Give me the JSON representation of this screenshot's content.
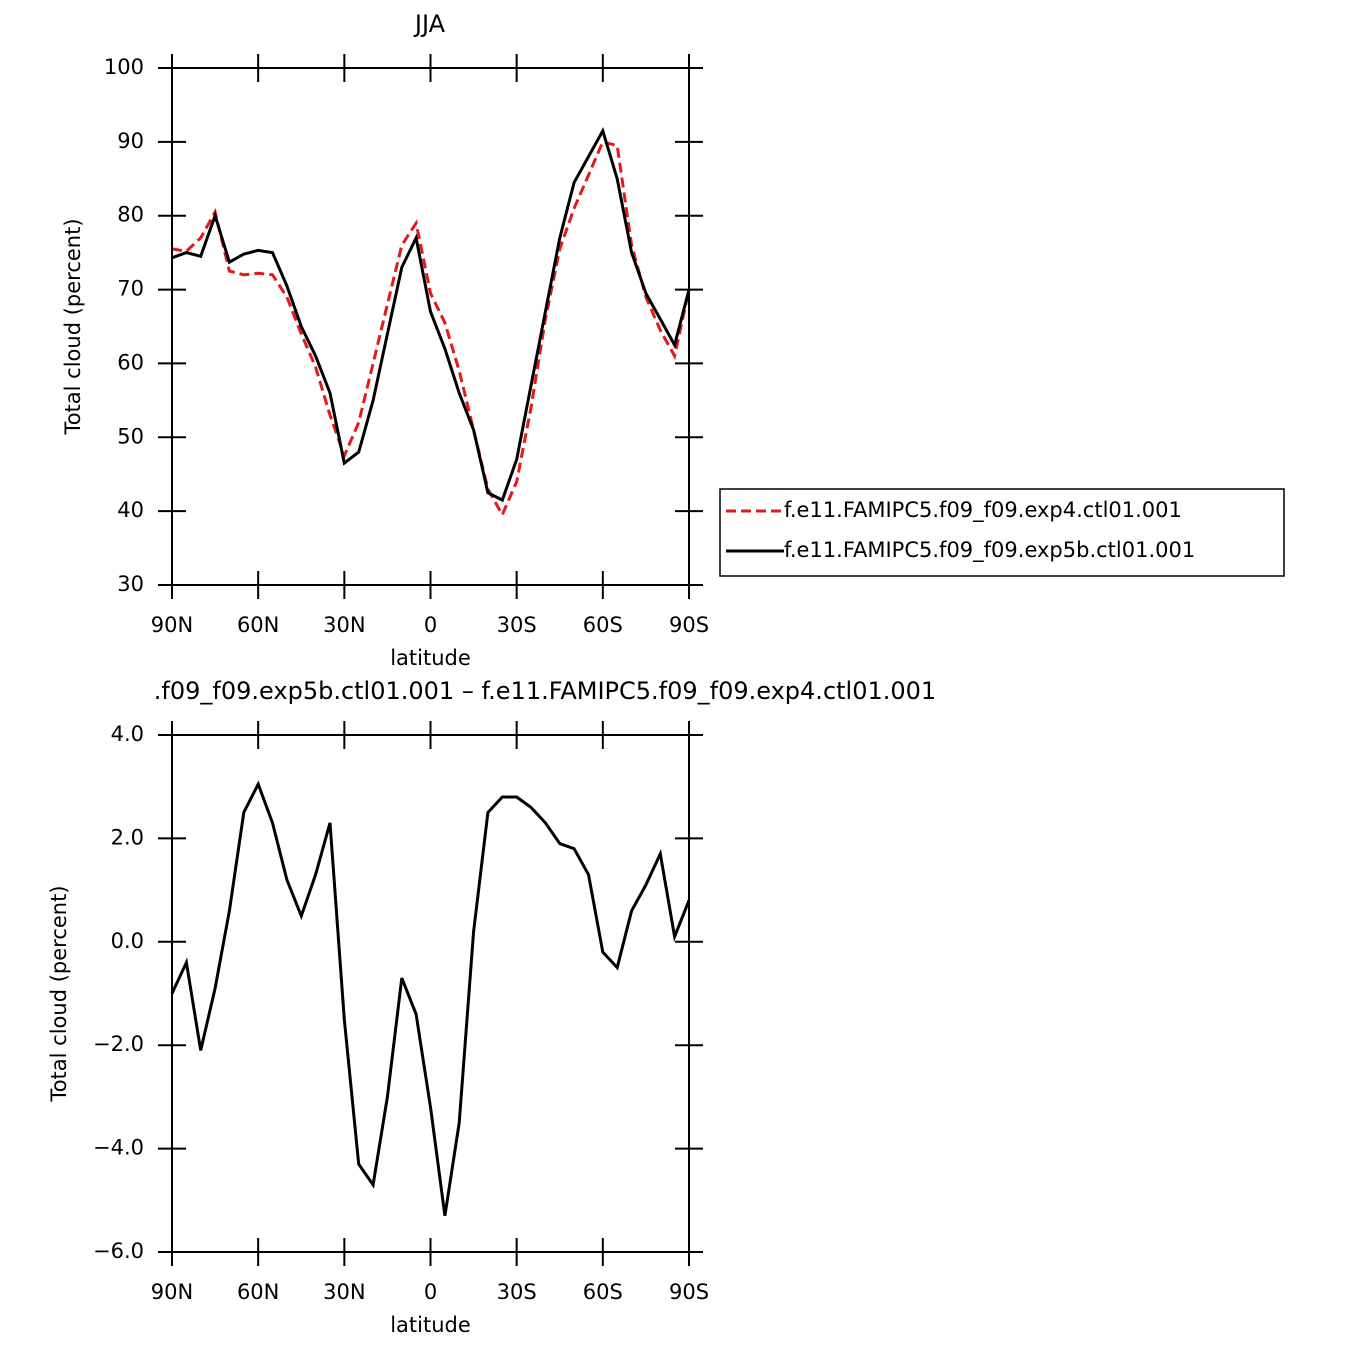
{
  "chart_data": [
    {
      "type": "line",
      "title": "JJA",
      "xlabel": "latitude",
      "ylabel": "Total cloud (percent)",
      "x": [
        90,
        85,
        80,
        75,
        70,
        65,
        60,
        55,
        50,
        45,
        40,
        35,
        30,
        25,
        20,
        15,
        10,
        5,
        0,
        -5,
        -10,
        -15,
        -20,
        -25,
        -30,
        -35,
        -40,
        -45,
        -50,
        -55,
        -60,
        -65,
        -70,
        -75,
        -80,
        -85,
        -90
      ],
      "series": [
        {
          "name": "f.e11.FAMIPC5.f09_f09.exp4.ctl01.001",
          "color": "#e31a1c",
          "line_style": "dashed",
          "values": [
            75.5,
            75.2,
            77,
            80.5,
            72.5,
            72,
            72.2,
            72,
            69,
            64,
            59.5,
            53,
            47.5,
            52,
            60,
            68,
            76,
            79,
            69.5,
            65.5,
            59,
            51,
            43,
            39.5,
            44,
            54,
            66,
            75.5,
            81,
            85.5,
            90,
            89.5,
            76,
            69,
            64.5,
            61,
            70
          ]
        },
        {
          "name": "f.e11.FAMIPC5.f09_f09.exp5b.ctl01.001",
          "color": "#000000",
          "line_style": "solid",
          "values": [
            74.3,
            75,
            74.5,
            80,
            73.7,
            74.8,
            75.3,
            75,
            70.5,
            65,
            61,
            56,
            46.5,
            48,
            55,
            64,
            73,
            77,
            67,
            62,
            56,
            51,
            42.5,
            41.5,
            47,
            57,
            67,
            77,
            84.5,
            88,
            91.5,
            85,
            75,
            69.5,
            66,
            62.5,
            70
          ]
        }
      ],
      "xlim": [
        90,
        -90
      ],
      "xticks": [
        {
          "value": 90,
          "label": "90N"
        },
        {
          "value": 60,
          "label": "60N"
        },
        {
          "value": 30,
          "label": "30N"
        },
        0,
        {
          "value": -30,
          "label": "30S"
        },
        {
          "value": -60,
          "label": "60S"
        },
        {
          "value": -90,
          "label": "90S"
        }
      ],
      "ylim": [
        30,
        100
      ],
      "yticks": [
        30,
        40,
        50,
        60,
        70,
        80,
        90,
        100
      ],
      "legend": "right"
    },
    {
      "type": "line",
      "title": ".f09_f09.exp5b.ctl01.001  –  f.e11.FAMIPC5.f09_f09.exp4.ctl01.001",
      "xlabel": "latitude",
      "ylabel": "Total cloud (percent)",
      "x": [
        90,
        85,
        80,
        75,
        70,
        65,
        60,
        55,
        50,
        45,
        40,
        35,
        30,
        25,
        20,
        15,
        10,
        5,
        0,
        -5,
        -10,
        -15,
        -20,
        -25,
        -30,
        -35,
        -40,
        -45,
        -50,
        -55,
        -60,
        -65,
        -70,
        -75,
        -80,
        -85,
        -90
      ],
      "series": [
        {
          "color": "#000000",
          "line_style": "solid",
          "values": [
            -1,
            -0.4,
            -2.1,
            -0.9,
            0.6,
            2.5,
            3.05,
            2.3,
            1.2,
            0.5,
            1.3,
            2.3,
            -1.5,
            -4.3,
            -4.7,
            -3,
            -0.7,
            -1.4,
            -3.2,
            -5.3,
            -3.5,
            0.2,
            2.5,
            2.8,
            2.8,
            2.6,
            2.3,
            1.9,
            1.8,
            1.3,
            -0.2,
            -0.5,
            0.6,
            1.1,
            1.7,
            0.1,
            0.8
          ]
        }
      ],
      "xlim": [
        90,
        -90
      ],
      "xticks": [
        {
          "value": 90,
          "label": "90N"
        },
        {
          "value": 60,
          "label": "60N"
        },
        {
          "value": 30,
          "label": "30N"
        },
        0,
        {
          "value": -30,
          "label": "30S"
        },
        {
          "value": -60,
          "label": "60S"
        },
        {
          "value": -90,
          "label": "90S"
        }
      ],
      "ylim": [
        -6,
        4
      ],
      "yticks": [
        {
          "value": -6,
          "label": "−6.0"
        },
        {
          "value": -4,
          "label": "−4.0"
        },
        {
          "value": -2,
          "label": "−2.0"
        },
        {
          "value": 0,
          "label": "0.0"
        },
        {
          "value": 2,
          "label": "2.0"
        },
        {
          "value": 4,
          "label": "4.0"
        }
      ]
    }
  ]
}
